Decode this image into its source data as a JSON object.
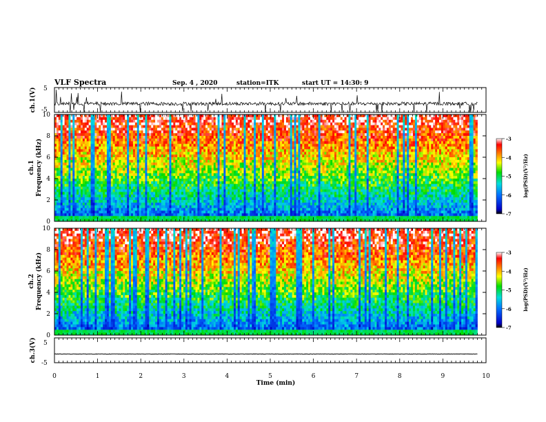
{
  "header": {
    "title": "VLF Spectra",
    "date": "Sep. 4 , 2020",
    "station": "station=ITK",
    "start_ut": "start UT = 14:30: 9"
  },
  "chart_data": [
    {
      "type": "line",
      "name": "ch1-waveform",
      "ylabel": "ch.1(V)",
      "yticks": [
        "5",
        "-5"
      ],
      "ylim": [
        -5,
        5
      ],
      "xlim": [
        0,
        10
      ],
      "data_end_min": 9.8,
      "baseline": -1.5
    },
    {
      "type": "heatmap",
      "name": "ch1-spectrogram",
      "ylabel_line1": "ch.1",
      "ylabel_line2": "Frequency (kHz)",
      "yticks": [
        "0",
        "2",
        "4",
        "6",
        "8",
        "10"
      ],
      "ylim": [
        0,
        10
      ],
      "xlim": [
        0,
        10
      ],
      "colorbar": {
        "label": "log(PSD)(V²/Hz)",
        "ticks": [
          "-3",
          "-4",
          "-5",
          "-6",
          "-7"
        ],
        "range": [
          -7,
          -3
        ],
        "colors": [
          "#000000",
          "#0000c8",
          "#0070ff",
          "#00dddd",
          "#00dd00",
          "#ffff00",
          "#ff8000",
          "#ff0000",
          "#ffffff"
        ]
      }
    },
    {
      "type": "heatmap",
      "name": "ch2-spectrogram",
      "ylabel_line1": "ch.2",
      "ylabel_line2": "Frequency (kHz)",
      "yticks": [
        "0",
        "2",
        "4",
        "6",
        "8",
        "10"
      ],
      "ylim": [
        0,
        10
      ],
      "xlim": [
        0,
        10
      ],
      "colorbar": {
        "label": "log(PSD)(V²/Hz)",
        "ticks": [
          "-3",
          "-4",
          "-5",
          "-6",
          "-7"
        ],
        "range": [
          -7,
          -3
        ]
      }
    },
    {
      "type": "line",
      "name": "ch3-waveform",
      "ylabel": "ch.3(V)",
      "yticks": [
        "5",
        "-5"
      ],
      "ylim": [
        -5,
        5
      ],
      "xlim": [
        0,
        10
      ],
      "baseline": -1.5
    }
  ],
  "xaxis": {
    "label": "Time (min)",
    "ticks": [
      "0",
      "1",
      "2",
      "3",
      "4",
      "5",
      "6",
      "7",
      "8",
      "9",
      "10"
    ]
  }
}
